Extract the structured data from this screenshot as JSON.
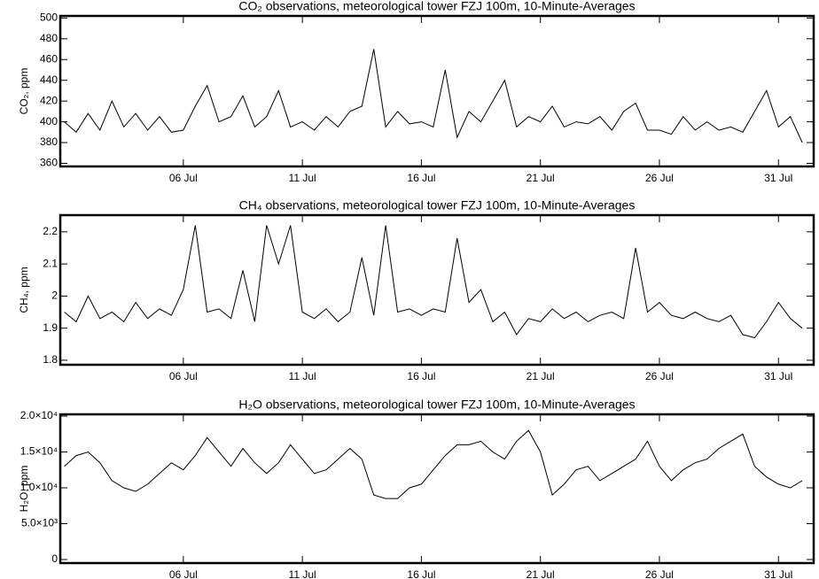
{
  "chart_data": [
    {
      "type": "line",
      "title": "CO₂ observations, meteorological tower FZJ 100m, 10-Minute-Averages",
      "ylabel": "CO₂, ppm",
      "x": [
        1,
        1.5,
        2,
        2.5,
        3,
        3.5,
        4,
        4.5,
        5,
        5.5,
        6,
        6.5,
        7,
        7.5,
        8,
        8.5,
        9,
        9.5,
        10,
        10.5,
        11,
        11.5,
        12,
        12.5,
        13,
        13.5,
        14,
        14.5,
        15,
        15.5,
        16,
        16.5,
        17,
        17.5,
        18,
        18.5,
        19,
        19.5,
        20,
        20.5,
        21,
        21.5,
        22,
        22.5,
        23,
        23.5,
        24,
        24.5,
        25,
        25.5,
        26,
        26.5,
        27,
        27.5,
        28,
        28.5,
        29,
        29.5,
        30,
        30.5,
        31,
        31.5,
        32
      ],
      "series": [
        {
          "color": "#000000",
          "values": [
            400,
            390,
            408,
            392,
            420,
            395,
            408,
            392,
            405,
            390,
            392,
            415,
            435,
            400,
            405,
            425,
            395,
            405,
            430,
            395,
            400,
            392,
            405,
            395,
            410,
            415,
            470,
            395,
            410,
            398,
            400,
            395,
            450,
            385,
            410,
            400,
            420,
            440,
            395,
            405,
            400,
            415,
            395,
            400,
            398,
            405,
            392,
            410,
            418,
            392,
            392,
            388,
            405,
            392,
            400,
            392,
            395,
            390,
            410,
            430,
            395,
            405,
            380
          ]
        }
      ],
      "xlim": [
        0.83,
        32.48
      ],
      "xticks": [
        {
          "value": 6,
          "label": "06 Jul"
        },
        {
          "value": 11,
          "label": "11 Jul"
        },
        {
          "value": 16,
          "label": "16 Jul"
        },
        {
          "value": 21,
          "label": "21 Jul"
        },
        {
          "value": 26,
          "label": "26 Jul"
        },
        {
          "value": 31,
          "label": "31 Jul"
        }
      ],
      "ylim": [
        357,
        502
      ],
      "yticks": [
        360,
        380,
        400,
        420,
        440,
        460,
        480,
        500
      ]
    },
    {
      "type": "line",
      "title": "CH₄ observations, meteorological tower FZJ 100m, 10-Minute-Averages",
      "ylabel": "CH₄, ppm",
      "x": [
        1,
        1.5,
        2,
        2.5,
        3,
        3.5,
        4,
        4.5,
        5,
        5.5,
        6,
        6.5,
        7,
        7.5,
        8,
        8.5,
        9,
        9.5,
        10,
        10.5,
        11,
        11.5,
        12,
        12.5,
        13,
        13.5,
        14,
        14.5,
        15,
        15.5,
        16,
        16.5,
        17,
        17.5,
        18,
        18.5,
        19,
        19.5,
        20,
        20.5,
        21,
        21.5,
        22,
        22.5,
        23,
        23.5,
        24,
        24.5,
        25,
        25.5,
        26,
        26.5,
        27,
        27.5,
        28,
        28.5,
        29,
        29.5,
        30,
        30.5,
        31,
        31.5,
        32
      ],
      "series": [
        {
          "color": "#000000",
          "values": [
            1.95,
            1.92,
            2.0,
            1.93,
            1.95,
            1.92,
            1.98,
            1.93,
            1.96,
            1.94,
            2.02,
            2.22,
            1.95,
            1.96,
            1.93,
            2.08,
            1.92,
            2.22,
            2.1,
            2.22,
            1.95,
            1.93,
            1.96,
            1.92,
            1.95,
            2.12,
            1.94,
            2.22,
            1.95,
            1.96,
            1.94,
            1.96,
            1.95,
            2.18,
            1.98,
            2.02,
            1.92,
            1.95,
            1.88,
            1.93,
            1.92,
            1.96,
            1.93,
            1.95,
            1.92,
            1.94,
            1.95,
            1.93,
            2.15,
            1.95,
            1.98,
            1.94,
            1.93,
            1.95,
            1.93,
            1.92,
            1.94,
            1.88,
            1.87,
            1.92,
            1.98,
            1.93,
            1.9
          ]
        }
      ],
      "xlim": [
        0.83,
        32.48
      ],
      "xticks": [
        {
          "value": 6,
          "label": "06 Jul"
        },
        {
          "value": 11,
          "label": "11 Jul"
        },
        {
          "value": 16,
          "label": "16 Jul"
        },
        {
          "value": 21,
          "label": "21 Jul"
        },
        {
          "value": 26,
          "label": "26 Jul"
        },
        {
          "value": 31,
          "label": "31 Jul"
        }
      ],
      "ylim": [
        1.786,
        2.252
      ],
      "yticks": [
        1.8,
        1.9,
        2.0,
        2.1,
        2.2
      ]
    },
    {
      "type": "line",
      "title": "H₂O observations, meteorological tower FZJ 100m, 10-Minute-Averages",
      "ylabel": "H₂O, ppm",
      "x": [
        1,
        1.5,
        2,
        2.5,
        3,
        3.5,
        4,
        4.5,
        5,
        5.5,
        6,
        6.5,
        7,
        7.5,
        8,
        8.5,
        9,
        9.5,
        10,
        10.5,
        11,
        11.5,
        12,
        12.5,
        13,
        13.5,
        14,
        14.5,
        15,
        15.5,
        16,
        16.5,
        17,
        17.5,
        18,
        18.5,
        19,
        19.5,
        20,
        20.5,
        21,
        21.5,
        22,
        22.5,
        23,
        23.5,
        24,
        24.5,
        25,
        25.5,
        26,
        26.5,
        27,
        27.5,
        28,
        28.5,
        29,
        29.5,
        30,
        30.5,
        31,
        31.5,
        32
      ],
      "series": [
        {
          "color": "#000000",
          "values": [
            13000,
            14500,
            15000,
            13500,
            11000,
            10000,
            9500,
            10500,
            12000,
            13500,
            12500,
            14500,
            17000,
            15000,
            13000,
            15500,
            13500,
            12000,
            13500,
            16000,
            14000,
            12000,
            12500,
            14000,
            15500,
            14000,
            9000,
            8500,
            8500,
            10000,
            10500,
            12500,
            14500,
            16000,
            16000,
            16500,
            15000,
            14000,
            16500,
            18000,
            15000,
            9000,
            10500,
            12500,
            13000,
            11000,
            12000,
            13000,
            14000,
            16500,
            13000,
            11000,
            12500,
            13500,
            14000,
            15500,
            16500,
            17500,
            13000,
            11500,
            10500,
            10000,
            11000
          ]
        }
      ],
      "xlim": [
        0.83,
        32.48
      ],
      "xticks": [
        {
          "value": 6,
          "label": "06 Jul"
        },
        {
          "value": 11,
          "label": "11 Jul"
        },
        {
          "value": 16,
          "label": "16 Jul"
        },
        {
          "value": 21,
          "label": "21 Jul"
        },
        {
          "value": 26,
          "label": "26 Jul"
        },
        {
          "value": 31,
          "label": "31 Jul"
        }
      ],
      "ylim": [
        -494,
        20247
      ],
      "yticks": [
        0,
        {
          "value": 5000,
          "label": "5.0×10³"
        },
        {
          "value": 10000,
          "label": "1.0×10⁴"
        },
        {
          "value": 15000,
          "label": "1.5×10⁴"
        },
        {
          "value": 20000,
          "label": "2.0×10⁴"
        }
      ]
    }
  ]
}
